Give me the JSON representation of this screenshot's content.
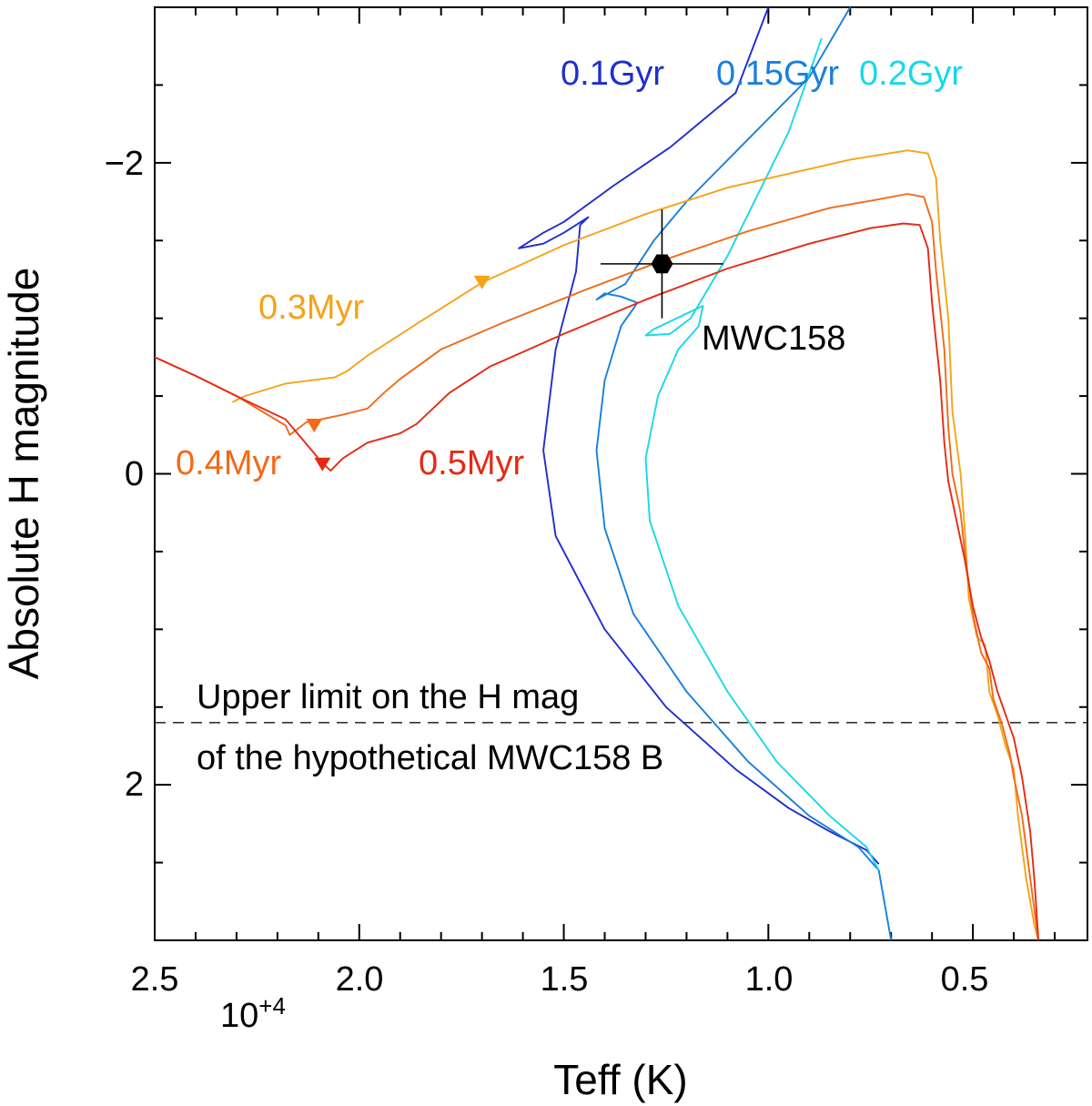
{
  "chart_data": {
    "type": "line",
    "title": "",
    "xlabel": "Teff (K)",
    "ylabel": "Absolute H magnitude",
    "x_multiplier_label": "10",
    "x_multiplier_exp": "+4",
    "xlim": [
      2.5,
      0.22
    ],
    "ylim": [
      3.0,
      -3.0
    ],
    "xticks": [
      2.5,
      2.0,
      1.5,
      1.0,
      0.5
    ],
    "xtick_labels": [
      "2.5",
      "2.0",
      "1.5",
      "1.0",
      "0.5"
    ],
    "yticks": [
      -2,
      0,
      2
    ],
    "ytick_labels": [
      "−2",
      "0",
      "2"
    ],
    "grid": false,
    "series": [
      {
        "name": "0.1Gyr",
        "color": "#1f2ecc",
        "x": [
          0.73,
          0.76,
          0.85,
          0.95,
          1.08,
          1.25,
          1.4,
          1.52,
          1.55,
          1.52,
          1.47,
          1.46,
          1.44,
          1.5,
          1.55,
          1.61,
          1.55,
          1.5,
          1.38,
          1.24,
          1.08,
          1.0
        ],
        "y": [
          2.51,
          2.42,
          2.3,
          2.15,
          1.9,
          1.5,
          1.0,
          0.4,
          -0.15,
          -0.8,
          -1.3,
          -1.6,
          -1.65,
          -1.55,
          -1.48,
          -1.45,
          -1.55,
          -1.62,
          -1.85,
          -2.1,
          -2.45,
          -3.0
        ]
      },
      {
        "name": "0.15Gyr",
        "color": "#1a7fdc",
        "x": [
          0.7,
          0.73,
          0.78,
          0.9,
          1.05,
          1.2,
          1.33,
          1.4,
          1.42,
          1.4,
          1.36,
          1.32,
          1.36,
          1.4,
          1.42,
          1.35,
          1.28,
          1.2,
          1.05,
          0.9,
          0.8
        ],
        "y": [
          3.0,
          2.55,
          2.4,
          2.2,
          1.85,
          1.4,
          0.9,
          0.35,
          -0.15,
          -0.6,
          -0.95,
          -1.1,
          -1.14,
          -1.16,
          -1.12,
          -1.22,
          -1.5,
          -1.75,
          -2.15,
          -2.55,
          -3.0
        ]
      },
      {
        "name": "0.2Gyr",
        "color": "#18d8e8",
        "x": [
          0.73,
          0.76,
          0.85,
          0.98,
          1.1,
          1.22,
          1.29,
          1.3,
          1.27,
          1.22,
          1.17,
          1.16,
          1.28,
          1.3,
          1.24,
          1.19,
          1.1,
          0.95,
          0.87
        ],
        "y": [
          2.55,
          2.4,
          2.2,
          1.85,
          1.4,
          0.85,
          0.3,
          -0.1,
          -0.5,
          -0.8,
          -0.95,
          -1.08,
          -0.93,
          -0.89,
          -0.9,
          -1.0,
          -1.4,
          -2.2,
          -2.8
        ]
      },
      {
        "name": "0.3Myr",
        "color": "#f5a318",
        "x": [
          2.31,
          2.28,
          2.18,
          2.06,
          2.03,
          1.98,
          1.85,
          1.7,
          1.5,
          1.3,
          1.1,
          0.9,
          0.8,
          0.66,
          0.61,
          0.59,
          0.58,
          0.56,
          0.55,
          0.53,
          0.52,
          0.51,
          0.49,
          0.47,
          0.46,
          0.44,
          0.42,
          0.4,
          0.39,
          0.37,
          0.35,
          0.34
        ],
        "y": [
          -0.46,
          -0.5,
          -0.58,
          -0.62,
          -0.66,
          -0.76,
          -0.98,
          -1.23,
          -1.47,
          -1.67,
          -1.84,
          -1.96,
          -2.02,
          -2.08,
          -2.06,
          -1.9,
          -1.5,
          -1.0,
          -0.4,
          0.0,
          0.35,
          0.8,
          1.05,
          1.1,
          1.4,
          1.55,
          1.75,
          1.9,
          2.2,
          2.6,
          2.9,
          3.0
        ]
      },
      {
        "name": "0.4Myr",
        "color": "#f26a18",
        "x": [
          2.5,
          2.4,
          2.3,
          2.18,
          2.17,
          2.13,
          2.04,
          1.98,
          1.94,
          1.9,
          1.8,
          1.65,
          1.45,
          1.25,
          1.05,
          0.85,
          0.74,
          0.66,
          0.62,
          0.6,
          0.59,
          0.57,
          0.56,
          0.55,
          0.53,
          0.52,
          0.5,
          0.48,
          0.46,
          0.45,
          0.43,
          0.41,
          0.4,
          0.38,
          0.36,
          0.34
        ],
        "y": [
          -0.75,
          -0.63,
          -0.5,
          -0.31,
          -0.25,
          -0.33,
          -0.38,
          -0.42,
          -0.52,
          -0.61,
          -0.8,
          -0.97,
          -1.18,
          -1.38,
          -1.56,
          -1.71,
          -1.76,
          -1.8,
          -1.78,
          -1.62,
          -1.3,
          -0.8,
          -0.3,
          0.0,
          0.25,
          0.5,
          0.9,
          1.15,
          1.25,
          1.45,
          1.6,
          1.8,
          1.95,
          2.2,
          2.6,
          3.0
        ]
      },
      {
        "name": "0.5Myr",
        "color": "#e52a14",
        "x": [
          2.5,
          2.4,
          2.3,
          2.18,
          2.1,
          2.09,
          2.07,
          2.04,
          1.98,
          1.9,
          1.86,
          1.82,
          1.78,
          1.68,
          1.5,
          1.3,
          1.1,
          0.9,
          0.75,
          0.67,
          0.63,
          0.61,
          0.6,
          0.58,
          0.57,
          0.56,
          0.54,
          0.52,
          0.5,
          0.48,
          0.46,
          0.44,
          0.42,
          0.4,
          0.38,
          0.36,
          0.35,
          0.34
        ],
        "y": [
          -0.75,
          -0.63,
          -0.5,
          -0.35,
          -0.1,
          -0.07,
          -0.02,
          -0.1,
          -0.2,
          -0.26,
          -0.32,
          -0.42,
          -0.52,
          -0.69,
          -0.9,
          -1.12,
          -1.32,
          -1.48,
          -1.58,
          -1.61,
          -1.6,
          -1.45,
          -1.1,
          -0.6,
          -0.2,
          0.05,
          0.3,
          0.55,
          0.85,
          1.05,
          1.2,
          1.4,
          1.55,
          1.7,
          1.95,
          2.3,
          2.6,
          3.0
        ]
      }
    ],
    "triangle_markers": [
      {
        "series": "0.3Myr",
        "x": 1.7,
        "y": -1.23
      },
      {
        "series": "0.4Myr",
        "x": 2.11,
        "y": -0.31
      },
      {
        "series": "0.5Myr",
        "x": 2.09,
        "y": -0.06
      }
    ],
    "data_point": {
      "name": "MWC158",
      "x": 1.26,
      "y": -1.35,
      "xerr": [
        0.15,
        0.15
      ],
      "yerr": [
        0.35,
        0.35
      ]
    },
    "reference_line": {
      "y": 1.6,
      "style": "dashed",
      "color": "#333333"
    },
    "labels": {
      "s01": "0.1Gyr",
      "s015": "0.15Gyr",
      "s02": "0.2Gyr",
      "s03": "0.3Myr",
      "s04": "0.4Myr",
      "s05": "0.5Myr",
      "star": "MWC158",
      "limit_line1": "Upper limit on the H mag",
      "limit_line2": "of the hypothetical MWC158 B"
    }
  }
}
